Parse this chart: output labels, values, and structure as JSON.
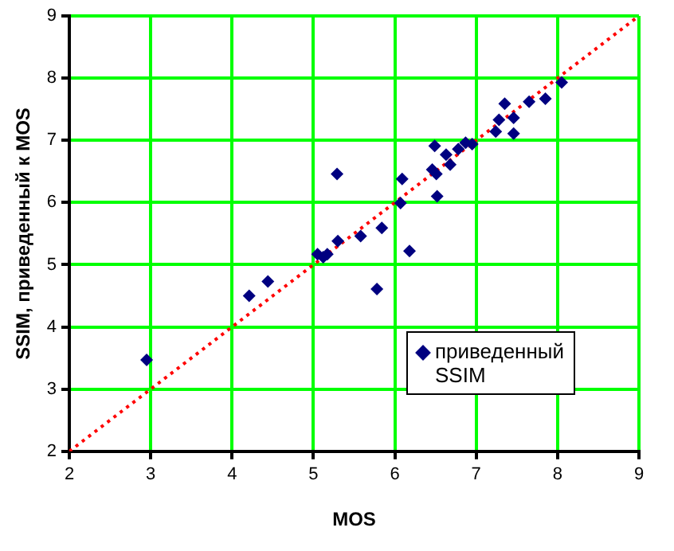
{
  "chart_data": {
    "type": "scatter",
    "xlabel": "MOS",
    "ylabel": "SSIM, приведенный к MOS",
    "xlim": [
      2,
      9
    ],
    "xticks": [
      2,
      3,
      4,
      5,
      6,
      7,
      8,
      9
    ],
    "ylim": [
      2,
      9
    ],
    "yticks": [
      2,
      3,
      4,
      5,
      6,
      7,
      8,
      9
    ],
    "grid": true,
    "legend": "bottom right",
    "marker": "diamond",
    "series": [
      {
        "name": "приведенный SSIM",
        "color": "#000080",
        "x": [
          2.95,
          4.21,
          4.44,
          5.05,
          5.12,
          5.17,
          5.3,
          5.29,
          5.58,
          5.84,
          5.78,
          6.18,
          6.07,
          6.09,
          6.49,
          6.51,
          6.46,
          6.63,
          6.68,
          6.78,
          6.87,
          6.95,
          6.52,
          7.24,
          7.28,
          7.35,
          7.46,
          7.46,
          7.65,
          7.85,
          8.05
        ],
        "values": [
          3.47,
          4.5,
          4.73,
          5.17,
          5.12,
          5.17,
          5.38,
          6.46,
          5.46,
          5.59,
          4.61,
          5.22,
          5.99,
          6.38,
          6.91,
          6.46,
          6.53,
          6.77,
          6.61,
          6.86,
          6.96,
          6.94,
          6.1,
          7.14,
          7.33,
          7.59,
          7.36,
          7.11,
          7.62,
          7.67,
          7.93
        ]
      },
      {
        "type": "line",
        "color": "#ff0000",
        "line_style": "dotted",
        "marker": "none",
        "x": [
          2,
          9
        ],
        "values": [
          2,
          9
        ]
      }
    ]
  }
}
